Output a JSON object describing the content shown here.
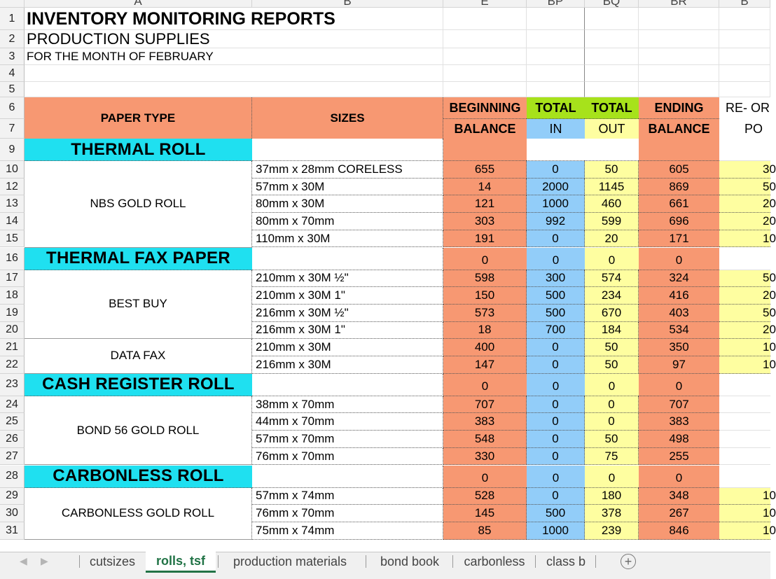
{
  "columns": [
    "A",
    "B",
    "E",
    "BP",
    "BQ",
    "BR",
    "B"
  ],
  "title": "INVENTORY MONITORING REPORTS",
  "subtitle": "PRODUCTION SUPPLIES",
  "period": "FOR THE MONTH OF FEBRUARY",
  "headers": {
    "paper_type": "PAPER TYPE",
    "sizes": "SIZES",
    "beginning_1": "BEGINNING",
    "beginning_2": "BALANCE",
    "total_in_1": "TOTAL",
    "total_in_2": "IN",
    "total_out_1": "TOTAL",
    "total_out_2": "OUT",
    "ending_1": "ENDING",
    "ending_2": "BALANCE",
    "reorder_1": "RE- OR",
    "reorder_2": "PO"
  },
  "colors": {
    "orange": "#f79872",
    "cyan": "#1fe0f0",
    "blue": "#92cdf9",
    "yellow": "#fefea0",
    "green": "#a7e21b"
  },
  "rows": [
    {
      "num": "1",
      "kind": "title"
    },
    {
      "num": "2",
      "kind": "subtitle"
    },
    {
      "num": "3",
      "kind": "period"
    },
    {
      "num": "4",
      "kind": "blank"
    },
    {
      "num": "5",
      "kind": "blank"
    },
    {
      "num": "6",
      "kind": "header1"
    },
    {
      "num": "7",
      "kind": "header2"
    },
    {
      "num": "9",
      "kind": "section",
      "label": "THERMAL  ROLL",
      "cyan": true
    },
    {
      "num": "10",
      "kind": "item",
      "size": "37mm x 28mm CORELESS",
      "beg": "655",
      "in": "0",
      "out": "50",
      "end": "605",
      "re": "30"
    },
    {
      "num": "12",
      "kind": "item",
      "size": "57mm x 30M",
      "beg": "14",
      "in": "2000",
      "out": "1145",
      "end": "869",
      "re": "50"
    },
    {
      "num": "13",
      "kind": "item",
      "size": "80mm x 30M",
      "beg": "121",
      "in": "1000",
      "out": "460",
      "end": "661",
      "re": "20"
    },
    {
      "num": "14",
      "kind": "item",
      "size": "80mm x 70mm",
      "beg": "303",
      "in": "992",
      "out": "599",
      "end": "696",
      "re": "20"
    },
    {
      "num": "15",
      "kind": "item",
      "size": "110mm x 30M",
      "beg": "191",
      "in": "0",
      "out": "20",
      "end": "171",
      "re": "10"
    },
    {
      "num": "16",
      "kind": "section",
      "label": "THERMAL FAX PAPER",
      "beg": "0",
      "in": "0",
      "out": "0",
      "end": "0"
    },
    {
      "num": "17",
      "kind": "item",
      "size": "210mm x 30M ½\"",
      "beg": "598",
      "in": "300",
      "out": "574",
      "end": "324",
      "re": "50"
    },
    {
      "num": "18",
      "kind": "item",
      "size": "210mm x 30M 1\"",
      "beg": "150",
      "in": "500",
      "out": "234",
      "end": "416",
      "re": "20"
    },
    {
      "num": "19",
      "kind": "item",
      "size": "216mm x 30M ½\"",
      "beg": "573",
      "in": "500",
      "out": "670",
      "end": "403",
      "re": "50"
    },
    {
      "num": "20",
      "kind": "item",
      "size": "216mm x 30M 1\"",
      "beg": "18",
      "in": "700",
      "out": "184",
      "end": "534",
      "re": "20"
    },
    {
      "num": "21",
      "kind": "item",
      "size": "210mm x 30M",
      "beg": "400",
      "in": "0",
      "out": "50",
      "end": "350",
      "re": "10"
    },
    {
      "num": "22",
      "kind": "item",
      "size": "216mm x 30M",
      "beg": "147",
      "in": "0",
      "out": "50",
      "end": "97",
      "re": "10"
    },
    {
      "num": "23",
      "kind": "section",
      "label": "CASH REGISTER ROLL",
      "beg": "0",
      "in": "0",
      "out": "0",
      "end": "0"
    },
    {
      "num": "24",
      "kind": "item",
      "size": "38mm x 70mm",
      "beg": "707",
      "in": "0",
      "out": "0",
      "end": "707",
      "re": ""
    },
    {
      "num": "25",
      "kind": "item",
      "size": "44mm x 70mm",
      "beg": "383",
      "in": "0",
      "out": "0",
      "end": "383",
      "re": ""
    },
    {
      "num": "26",
      "kind": "item",
      "size": "57mm x 70mm",
      "beg": "548",
      "in": "0",
      "out": "50",
      "end": "498",
      "re": ""
    },
    {
      "num": "27",
      "kind": "item",
      "size": "76mm x 70mm",
      "beg": "330",
      "in": "0",
      "out": "75",
      "end": "255",
      "re": ""
    },
    {
      "num": "28",
      "kind": "section",
      "label": "CARBONLESS  ROLL",
      "beg": "0",
      "in": "0",
      "out": "0",
      "end": "0"
    },
    {
      "num": "29",
      "kind": "item",
      "size": "57mm x 74mm",
      "beg": "528",
      "in": "0",
      "out": "180",
      "end": "348",
      "re": "10"
    },
    {
      "num": "30",
      "kind": "item",
      "size": "76mm x 70mm",
      "beg": "145",
      "in": "500",
      "out": "378",
      "end": "267",
      "re": "10"
    },
    {
      "num": "31",
      "kind": "item",
      "size": "75mm x 74mm",
      "beg": "85",
      "in": "1000",
      "out": "239",
      "end": "846",
      "re": "10"
    }
  ],
  "groups": [
    {
      "label": "NBS  GOLD ROLL",
      "from": "10",
      "to": "15"
    },
    {
      "label": "BEST BUY",
      "from": "17",
      "to": "20"
    },
    {
      "label": "DATA FAX",
      "from": "21",
      "to": "22"
    },
    {
      "label": "BOND 56 GOLD ROLL",
      "from": "24",
      "to": "27"
    },
    {
      "label": "CARBONLESS GOLD ROLL",
      "from": "29",
      "to": "31"
    }
  ],
  "tabs": [
    {
      "label": "cutsizes",
      "active": false
    },
    {
      "label": "rolls, tsf",
      "active": true
    },
    {
      "label": "production materials",
      "active": false
    },
    {
      "label": "bond book",
      "active": false
    },
    {
      "label": "carbonless",
      "active": false
    },
    {
      "label": "class b",
      "active": false
    }
  ],
  "add_sheet_icon": "plus-circle-icon"
}
